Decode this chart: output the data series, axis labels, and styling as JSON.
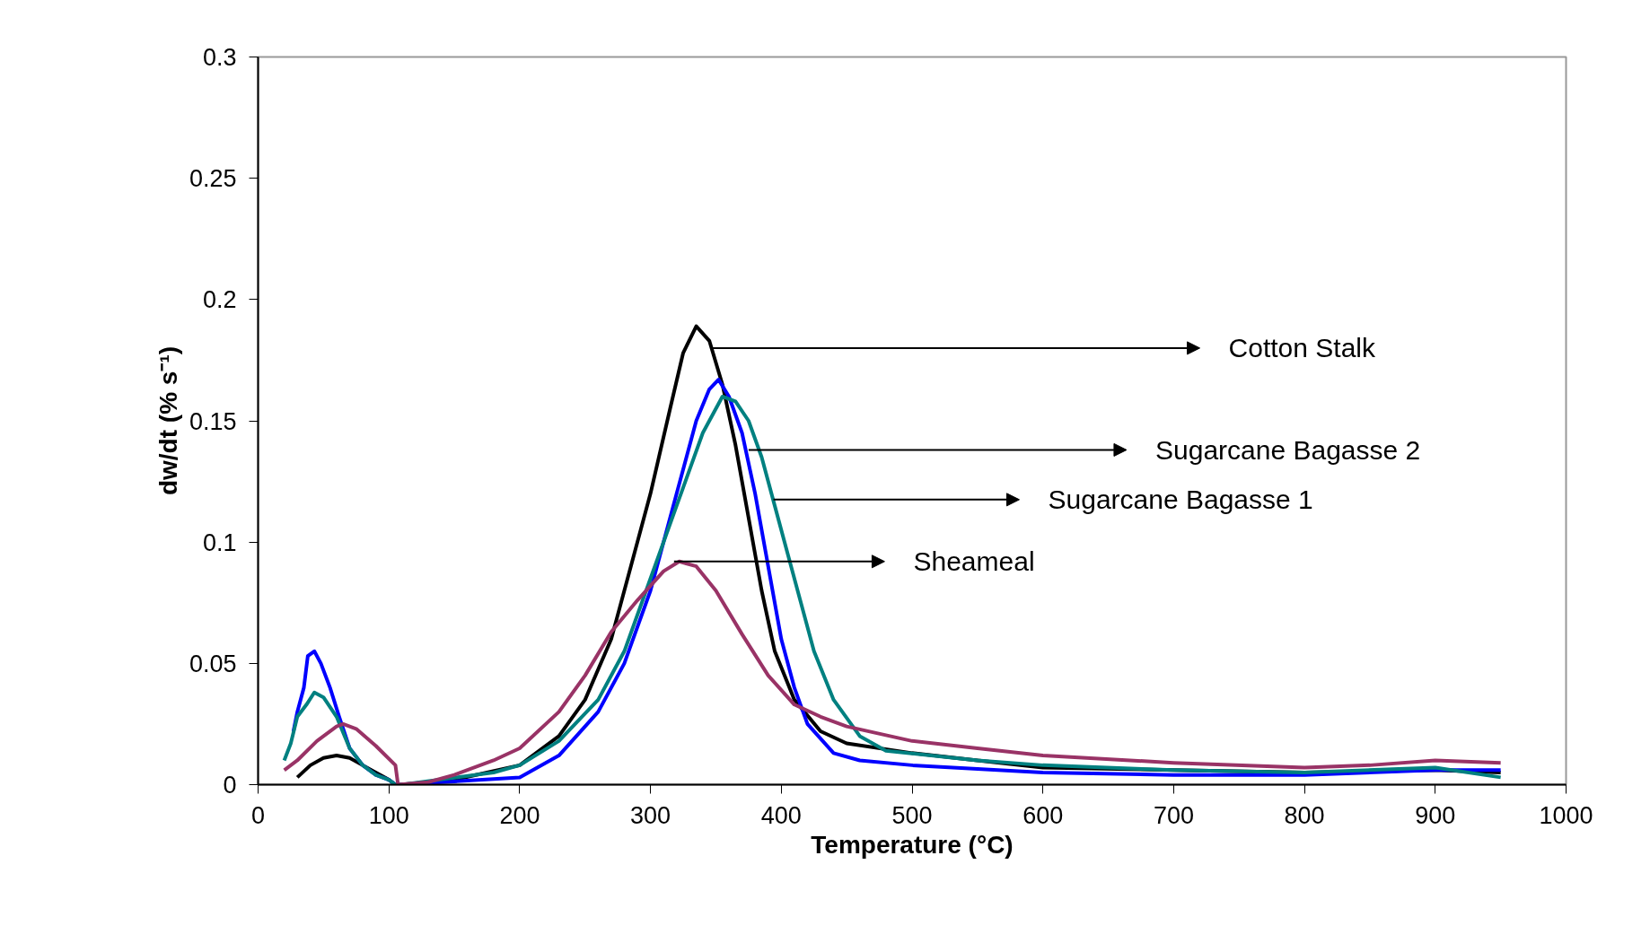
{
  "chart_data": {
    "type": "line",
    "xlabel": "Temperature (°C)",
    "ylabel": "dw/dt (% s⁻¹)",
    "xlim": [
      0,
      1000
    ],
    "ylim": [
      0,
      0.3
    ],
    "xticks": [
      0,
      100,
      200,
      300,
      400,
      500,
      600,
      700,
      800,
      900,
      1000
    ],
    "yticks": [
      0,
      {
        "value": 0.05,
        "label": "0.05"
      },
      {
        "value": 0.1,
        "label": "0.1"
      },
      {
        "value": 0.15,
        "label": "0.15"
      },
      {
        "value": 0.2,
        "label": "0.2"
      },
      {
        "value": 0.25,
        "label": "0.25"
      },
      {
        "value": 0.3,
        "label": "0.3"
      }
    ],
    "grid": false,
    "line_style": "solid",
    "marker": "none",
    "series": [
      {
        "color": "#000000",
        "x": [
          30,
          40,
          50,
          60,
          70,
          80,
          90,
          100,
          105,
          110,
          150,
          200,
          230,
          250,
          270,
          285,
          300,
          315,
          325,
          335,
          345,
          355,
          365,
          375,
          385,
          395,
          410,
          430,
          450,
          500,
          550,
          600,
          700,
          800,
          900,
          950
        ],
        "values": [
          0.003,
          0.008,
          0.011,
          0.012,
          0.011,
          0.008,
          0.005,
          0.002,
          0.0,
          0.0,
          0.002,
          0.008,
          0.02,
          0.035,
          0.06,
          0.09,
          0.12,
          0.155,
          0.178,
          0.189,
          0.183,
          0.165,
          0.14,
          0.11,
          0.08,
          0.055,
          0.035,
          0.022,
          0.017,
          0.013,
          0.01,
          0.007,
          0.006,
          0.005,
          0.006,
          0.005
        ]
      },
      {
        "color": "#0000ff",
        "x": [
          27,
          30,
          35,
          38,
          43,
          48,
          55,
          62,
          70,
          80,
          90,
          100,
          105,
          110,
          200,
          230,
          260,
          280,
          300,
          320,
          335,
          345,
          352,
          360,
          370,
          380,
          390,
          400,
          410,
          420,
          440,
          460,
          500,
          600,
          700,
          800,
          900,
          950
        ],
        "values": [
          0.022,
          0.03,
          0.04,
          0.053,
          0.055,
          0.05,
          0.04,
          0.028,
          0.015,
          0.008,
          0.004,
          0.002,
          0.0,
          0.0,
          0.003,
          0.012,
          0.03,
          0.05,
          0.08,
          0.12,
          0.15,
          0.163,
          0.167,
          0.16,
          0.145,
          0.12,
          0.09,
          0.06,
          0.04,
          0.025,
          0.013,
          0.01,
          0.008,
          0.005,
          0.004,
          0.004,
          0.006,
          0.006
        ]
      },
      {
        "color": "#008080",
        "x": [
          20,
          25,
          30,
          37,
          43,
          50,
          60,
          70,
          80,
          90,
          100,
          105,
          110,
          180,
          200,
          230,
          260,
          280,
          300,
          320,
          340,
          355,
          365,
          375,
          385,
          395,
          405,
          415,
          425,
          440,
          460,
          480,
          550,
          600,
          700,
          800,
          900,
          950
        ],
        "values": [
          0.01,
          0.017,
          0.028,
          0.033,
          0.038,
          0.036,
          0.028,
          0.015,
          0.008,
          0.004,
          0.002,
          0.0,
          0.0,
          0.005,
          0.008,
          0.018,
          0.035,
          0.055,
          0.085,
          0.115,
          0.145,
          0.16,
          0.158,
          0.15,
          0.135,
          0.115,
          0.095,
          0.075,
          0.055,
          0.035,
          0.02,
          0.014,
          0.01,
          0.008,
          0.006,
          0.005,
          0.007,
          0.003
        ]
      },
      {
        "color": "#993366",
        "x": [
          20,
          30,
          45,
          60,
          65,
          75,
          90,
          105,
          107,
          130,
          150,
          180,
          200,
          230,
          250,
          270,
          290,
          310,
          322,
          335,
          350,
          370,
          390,
          410,
          430,
          450,
          500,
          550,
          600,
          700,
          800,
          850,
          900,
          950
        ],
        "values": [
          0.006,
          0.01,
          0.018,
          0.024,
          0.025,
          0.023,
          0.016,
          0.008,
          0.0,
          0.001,
          0.004,
          0.01,
          0.015,
          0.03,
          0.045,
          0.063,
          0.076,
          0.088,
          0.092,
          0.09,
          0.08,
          0.062,
          0.045,
          0.033,
          0.028,
          0.024,
          0.018,
          0.015,
          0.012,
          0.009,
          0.007,
          0.008,
          0.01,
          0.009
        ]
      }
    ],
    "annotations": [
      {
        "text": "Cotton Stalk",
        "x": 346,
        "y": 0.18
      },
      {
        "text": "Sugarcane Bagasse 2",
        "x": 375,
        "y": 0.138
      },
      {
        "text": "Sugarcane Bagasse 1",
        "x": 394,
        "y": 0.1175
      },
      {
        "text": "Sheameal",
        "x": 318,
        "y": 0.092
      }
    ]
  }
}
